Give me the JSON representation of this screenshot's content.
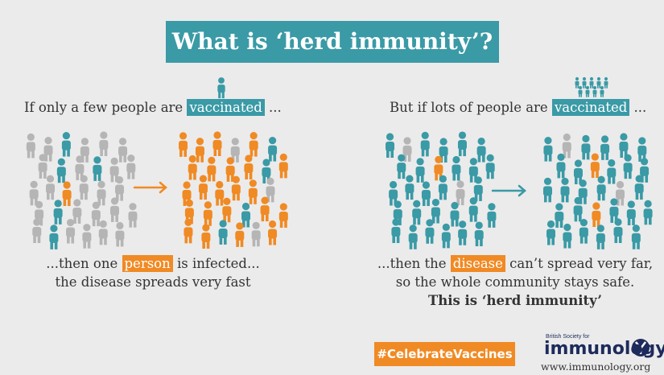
{
  "title": "What is ‘herd immunity’?",
  "left": {
    "heading": {
      "start": "If only a few people are",
      "highlight": "vaccinated",
      "end": "..."
    },
    "caption": {
      "line1_start": "...then one",
      "highlight": "person",
      "line1_end": "is infected...",
      "line2": "the disease spreads very fast"
    }
  },
  "right": {
    "heading": {
      "start": "But if lots of people are",
      "highlight": "vaccinated",
      "end": "..."
    },
    "caption": {
      "line1_start": "...then the",
      "highlight": "disease",
      "line1_end": "can’t spread very far,",
      "line2": "so the whole community stays safe.",
      "line3": "This is ‘herd immunity’"
    }
  },
  "footer": {
    "hashtag": "#CelebrateVaccines",
    "logo_small": "British Society for",
    "logo": "immunology",
    "url": "www.immunology.org"
  }
}
